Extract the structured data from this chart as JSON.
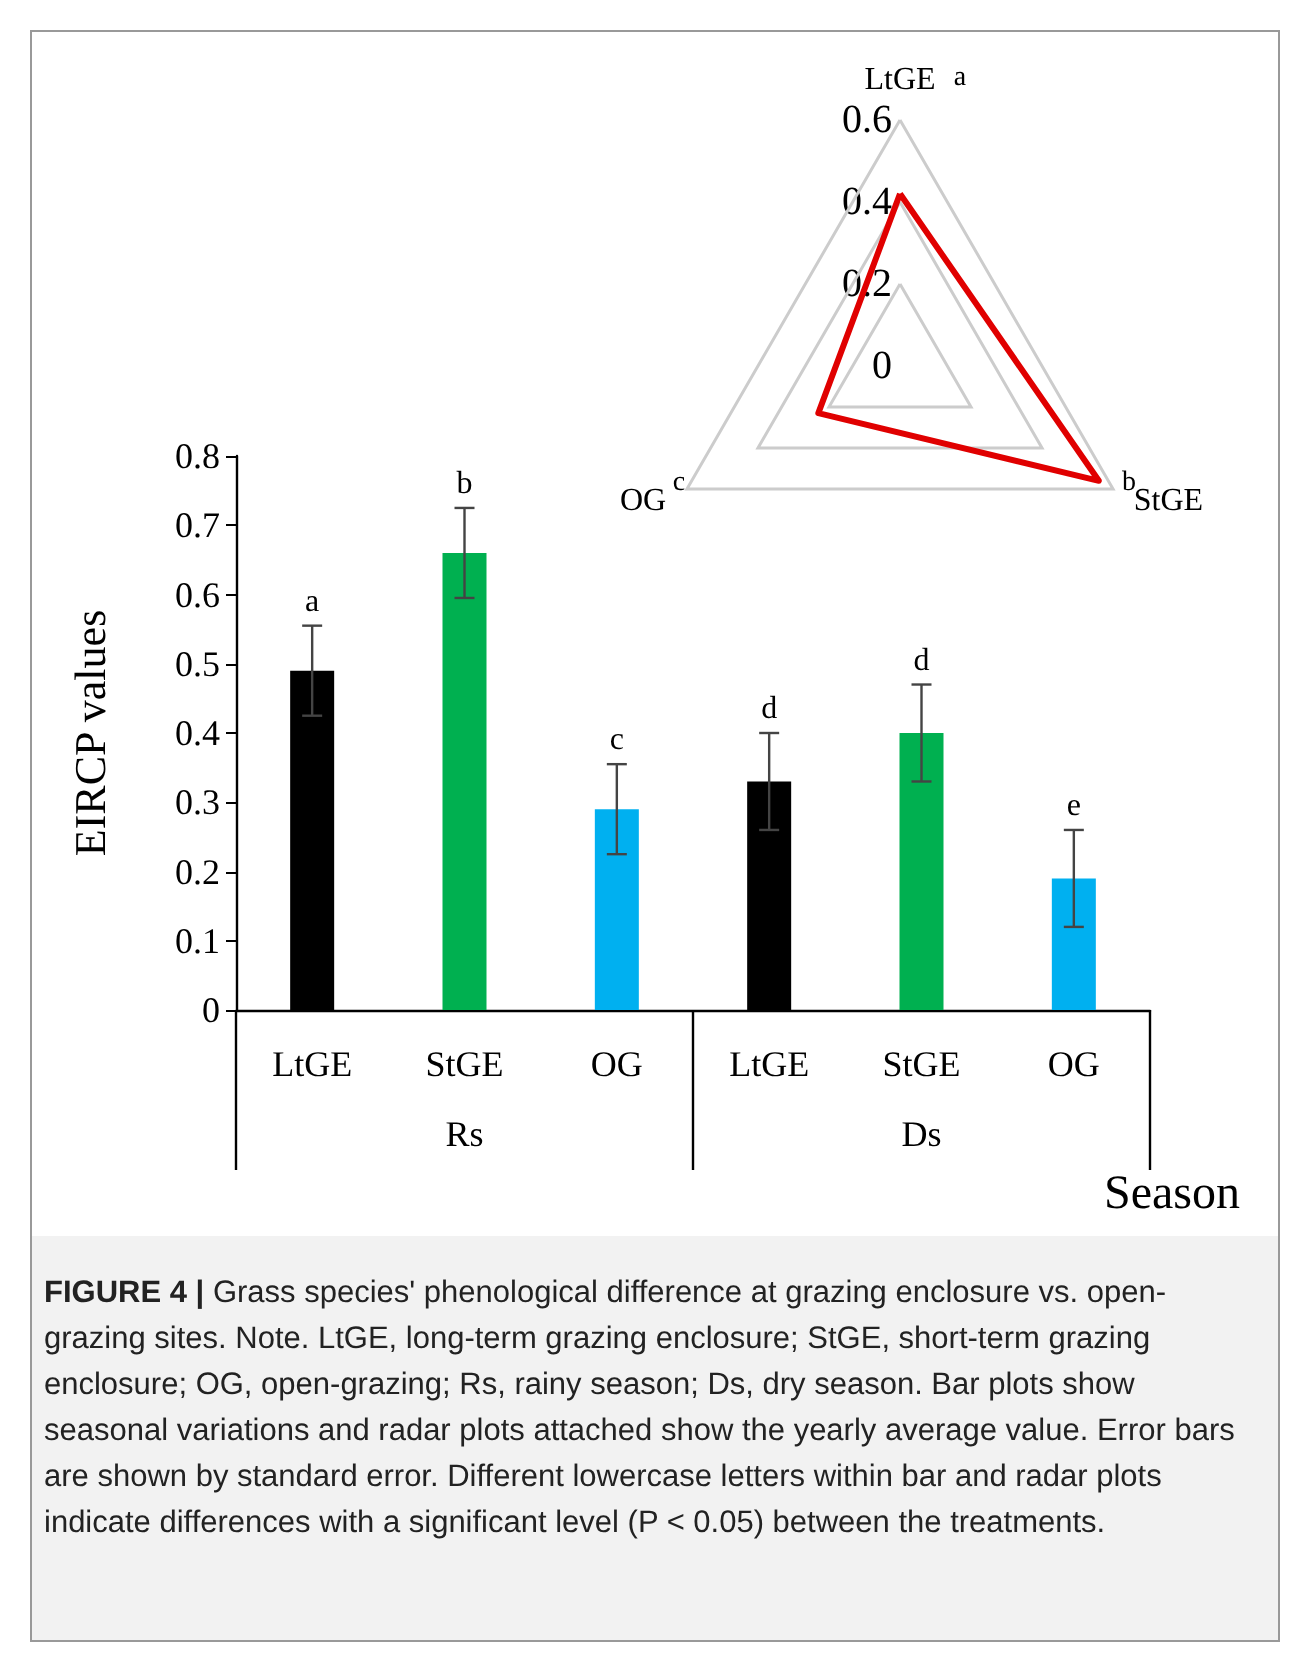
{
  "chart_data": [
    {
      "type": "bar",
      "ylabel": "EIRCP values",
      "xlabel": "Season",
      "categories": [
        "LtGE",
        "StGE",
        "OG",
        "LtGE",
        "StGE",
        "OG"
      ],
      "values": [
        0.49,
        0.66,
        0.29,
        0.33,
        0.4,
        0.19
      ],
      "colors": [
        "#000000",
        "#00b050",
        "#00b0f0",
        "#000000",
        "#00b050",
        "#00b0f0"
      ],
      "errors": [
        0.065,
        0.065,
        0.065,
        0.07,
        0.07,
        0.07
      ],
      "value_labels": [
        "a",
        "b",
        "c",
        "d",
        "d",
        "e"
      ],
      "ylim": [
        0,
        0.8
      ],
      "yticks": [
        0,
        0.1,
        0.2,
        0.3,
        0.4,
        0.5,
        0.6,
        0.7,
        0.8
      ],
      "annotations": [
        "Rs",
        "Ds",
        "FIGURE 4 | Grass species' phenological difference at grazing enclosure vs. open-grazing sites. Note. LtGE, long-term grazing enclosure; StGE, short-term grazing enclosure; OG, open-grazing; Rs, rainy season; Ds, dry season. Bar plots show seasonal variations and radar plots attached show the yearly average value. Error bars are shown by standard error. Different lowercase letters within bar and radar plots indicate differences with a significant level (P < 0.05) between the treatments."
      ]
    },
    {
      "type": "radar",
      "categories": [
        "LtGE",
        "StGE",
        "OG"
      ],
      "series": [
        {
          "color": "#e00000",
          "values": [
            0.42,
            0.56,
            0.23
          ]
        }
      ],
      "ylim": [
        0,
        0.6
      ],
      "yticks": [
        0,
        0.2,
        0.4,
        0.6
      ],
      "marker": "none",
      "annotations": [
        "a",
        "b",
        "c"
      ]
    }
  ]
}
